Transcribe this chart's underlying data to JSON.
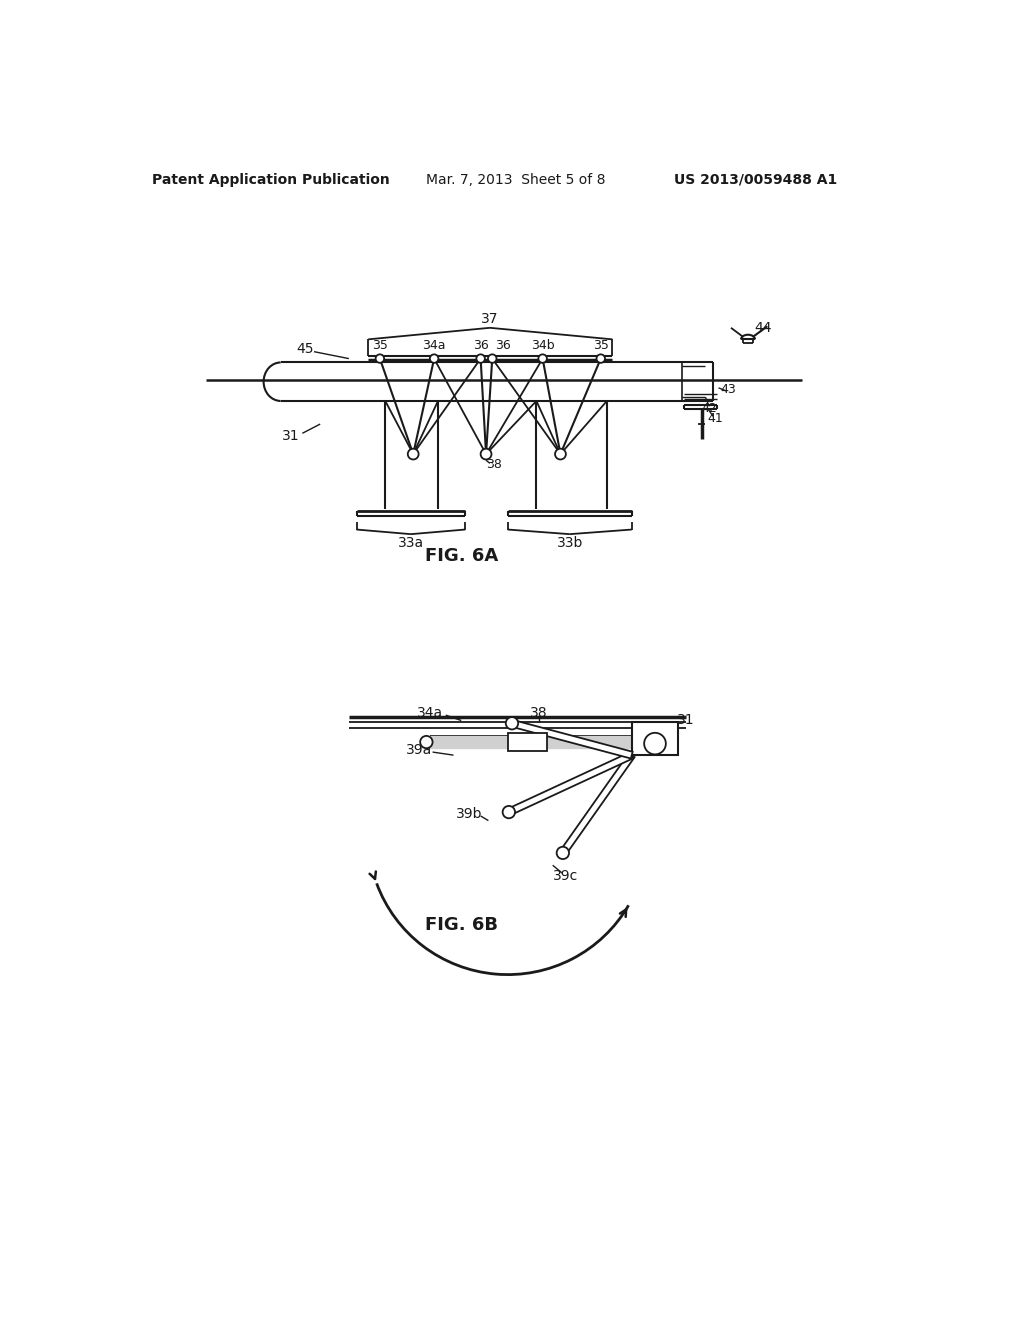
{
  "bg_color": "#ffffff",
  "header_left": "Patent Application Publication",
  "header_mid": "Mar. 7, 2013  Sheet 5 of 8",
  "header_right": "US 2013/0059488 A1",
  "fig6a_label": "FIG. 6A",
  "fig6b_label": "FIG. 6B",
  "lc": "#1a1a1a",
  "tc": "#1a1a1a"
}
